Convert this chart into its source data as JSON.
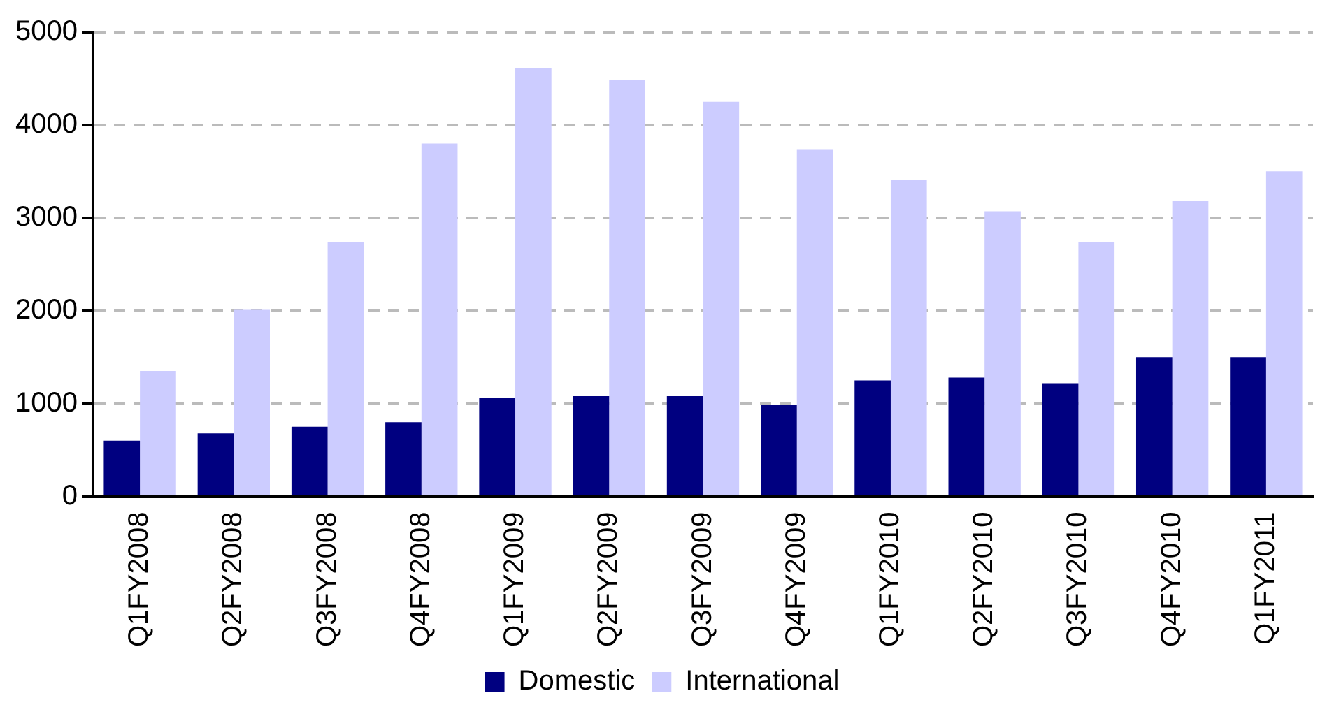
{
  "chart_data": {
    "type": "bar",
    "categories": [
      "Q1FY2008",
      "Q2FY2008",
      "Q3FY2008",
      "Q4FY2008",
      "Q1FY2009",
      "Q2FY2009",
      "Q3FY2009",
      "Q4FY2009",
      "Q1FY2010",
      "Q2FY2010",
      "Q3FY2010",
      "Q4FY2010",
      "Q1FY2011"
    ],
    "series": [
      {
        "name": "Domestic",
        "color": "#000080",
        "values": [
          600,
          680,
          750,
          800,
          1060,
          1080,
          1080,
          990,
          1250,
          1280,
          1220,
          1500,
          1500
        ]
      },
      {
        "name": "International",
        "color": "#ccccff",
        "values": [
          1350,
          2010,
          2740,
          3800,
          4610,
          4480,
          4250,
          3740,
          3410,
          3070,
          2740,
          3180,
          3500
        ]
      }
    ],
    "ylim": [
      0,
      5000
    ],
    "yticks": [
      0,
      1000,
      2000,
      3000,
      4000,
      5000
    ],
    "grid": "y",
    "legend": "bottom"
  }
}
